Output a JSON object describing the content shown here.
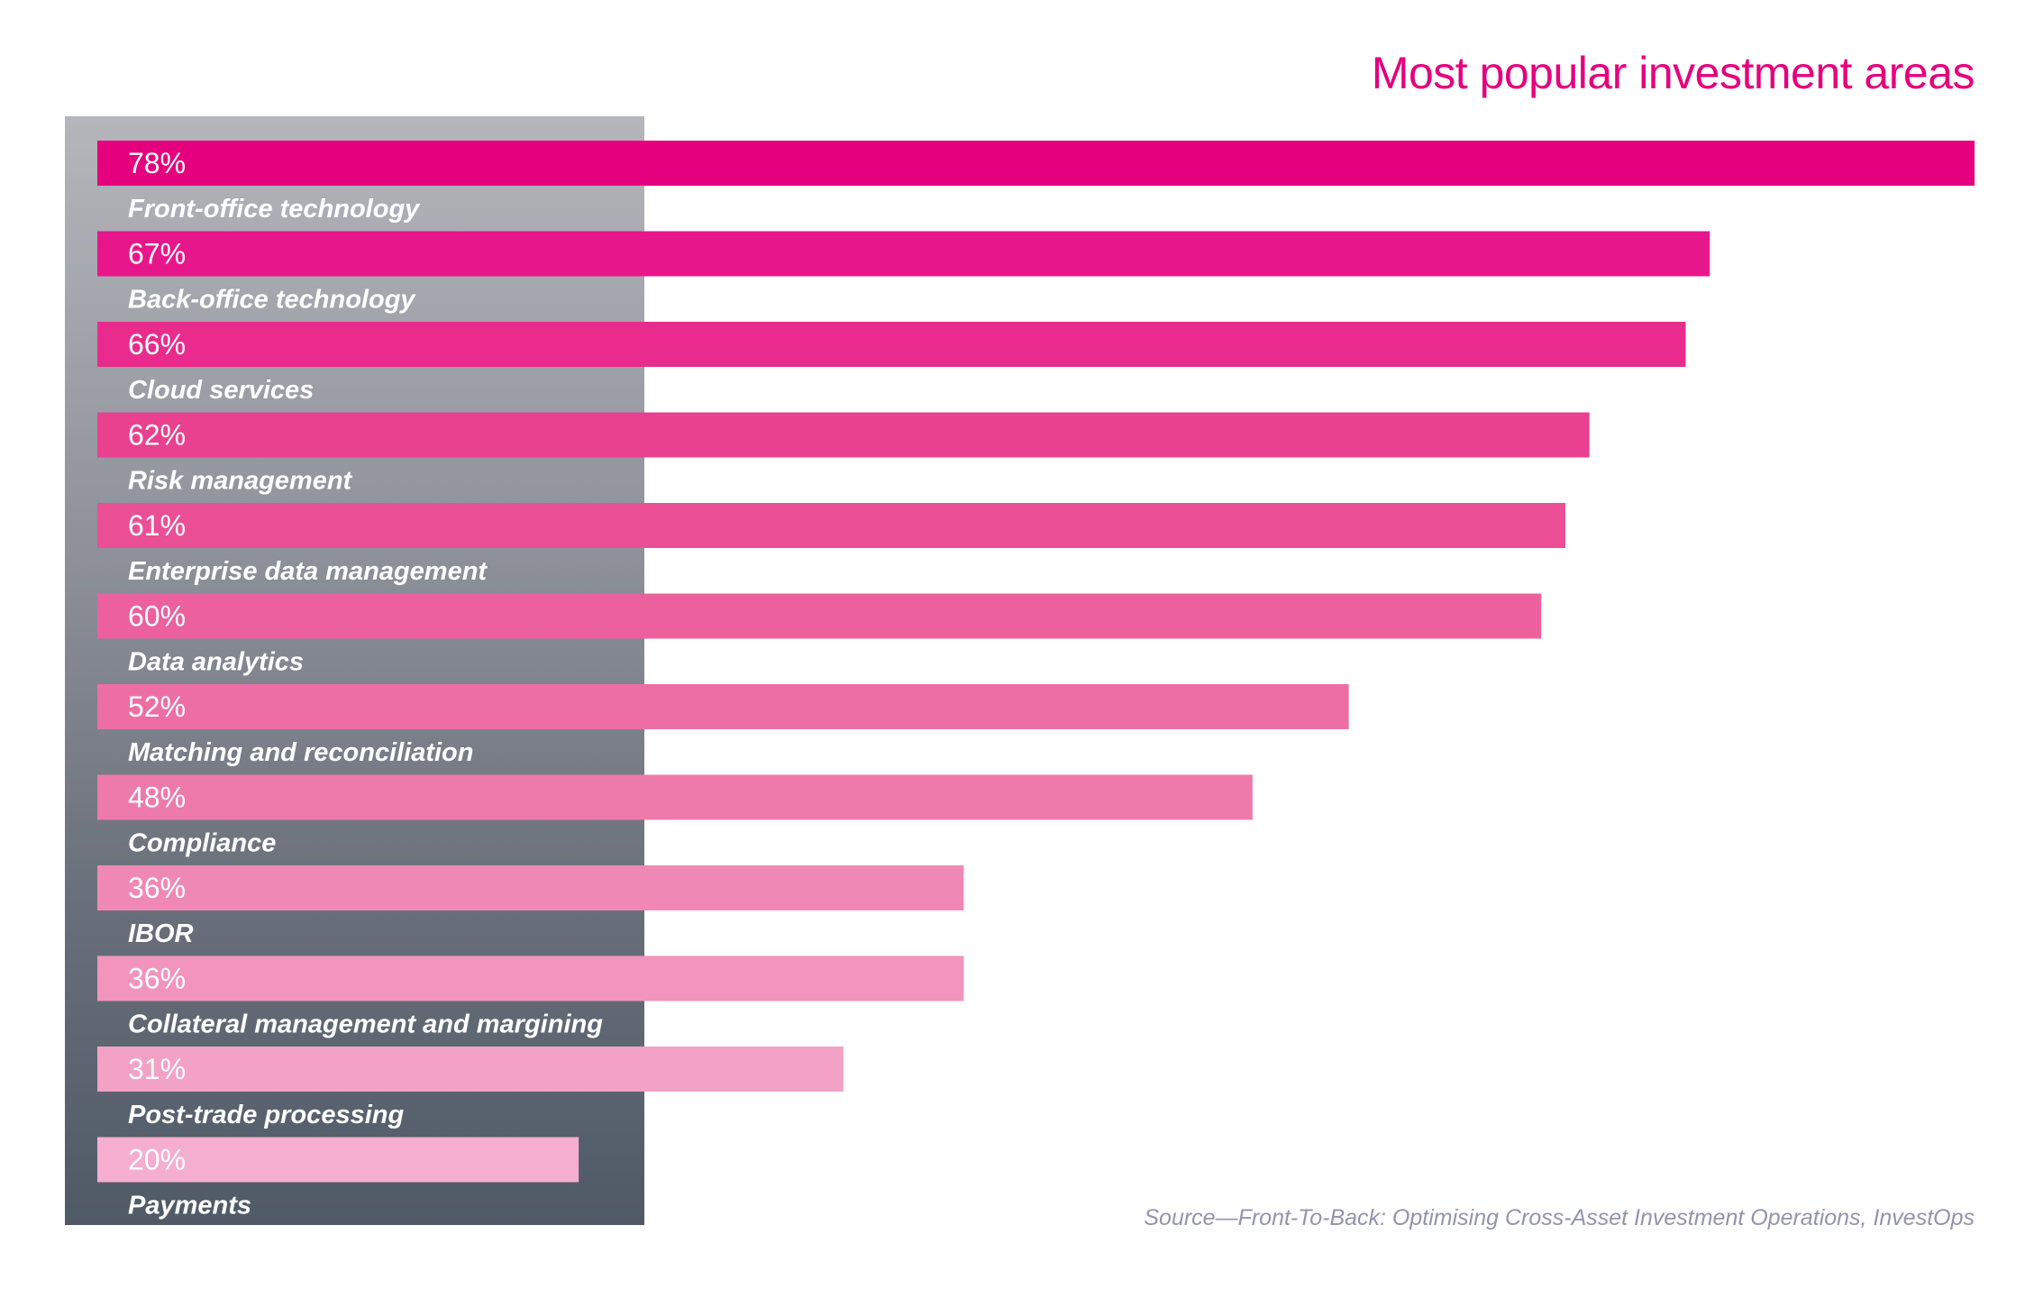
{
  "chart_data": {
    "type": "bar",
    "orientation": "horizontal",
    "title": "Most popular investment areas",
    "categories": [
      "Front-office technology",
      "Back-office technology",
      "Cloud services",
      "Risk management",
      "Enterprise data management",
      "Data analytics",
      "Matching and reconciliation",
      "Compliance",
      "IBOR",
      "Collateral management and margining",
      "Post-trade processing",
      "Payments"
    ],
    "values": [
      78,
      67,
      66,
      62,
      61,
      60,
      52,
      48,
      36,
      36,
      31,
      20
    ],
    "value_labels": [
      "78%",
      "67%",
      "66%",
      "62%",
      "61%",
      "60%",
      "52%",
      "48%",
      "36%",
      "36%",
      "31%",
      "20%"
    ],
    "unit": "%",
    "xlim": [
      0,
      78
    ],
    "grid": false,
    "legend": "none",
    "bar_colors": [
      "#e5007e",
      "#e7168a",
      "#e82b8d",
      "#e94090",
      "#ea4f96",
      "#eb609d",
      "#ed6ea5",
      "#ee7aab",
      "#f088b5",
      "#f294bc",
      "#f3a1c4",
      "#f5aed0"
    ]
  },
  "source": "Source—Front-To-Back: Optimising Cross-Asset Investment Operations, InvestOps",
  "colors": {
    "title": "#e5007e",
    "panel_top": "#b4b6bb",
    "panel_bottom": "#4f5a67",
    "source_text": "#9493ad"
  }
}
